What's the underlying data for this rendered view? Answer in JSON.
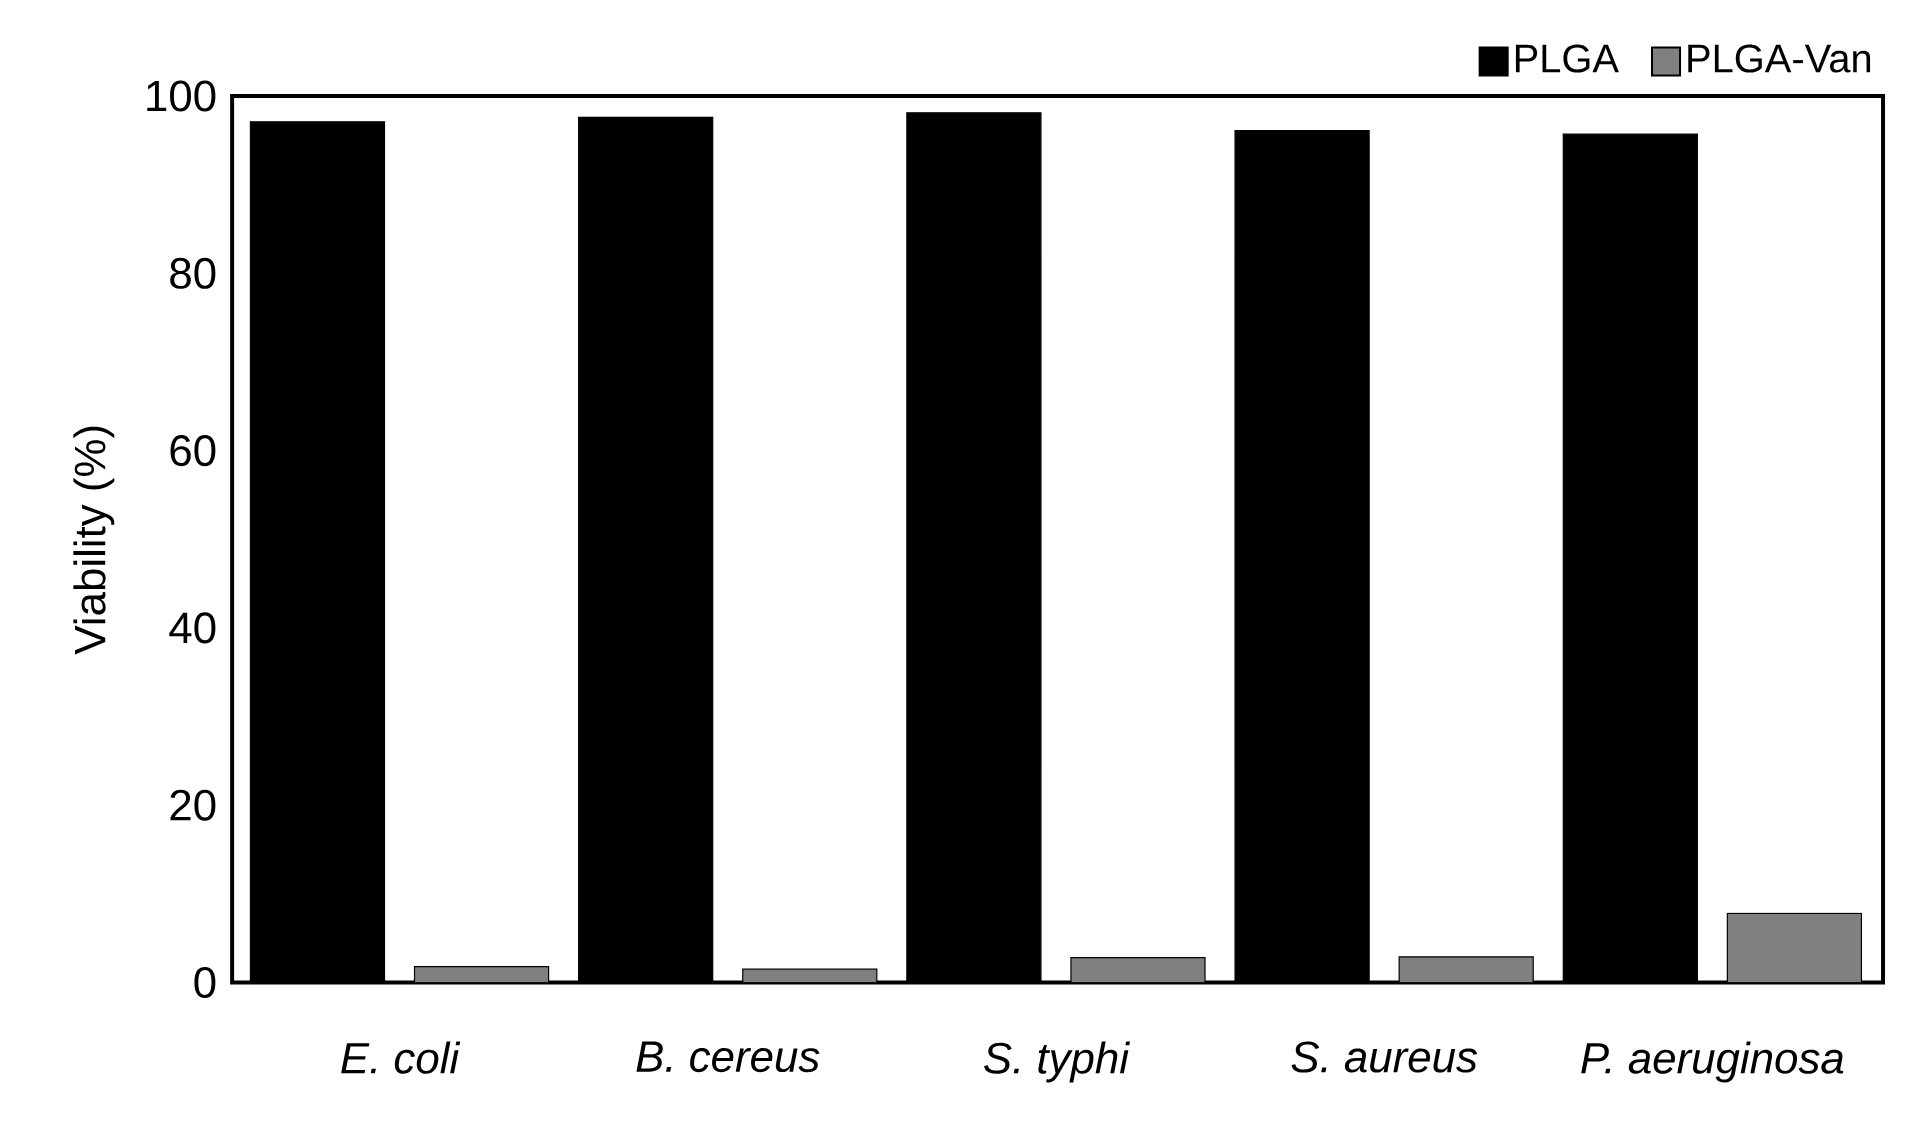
{
  "chart_data": {
    "type": "bar",
    "ylabel": "Viability (%)",
    "categories": [
      "E. coli",
      "B. cereus",
      "S. typhi",
      "S. aureus",
      "P. aeruginosa"
    ],
    "series": [
      {
        "name": "PLGA",
        "color": "#000000",
        "values": [
          97.1,
          97.6,
          98.1,
          96.1,
          95.7
        ]
      },
      {
        "name": "PLGA-Van",
        "color": "#808080",
        "values": [
          1.8,
          1.5,
          2.8,
          2.9,
          7.8
        ]
      }
    ],
    "ylim": [
      0,
      100
    ],
    "yticks": [
      0,
      20,
      40,
      60,
      80,
      100
    ],
    "grid": false,
    "legend": "top right"
  }
}
